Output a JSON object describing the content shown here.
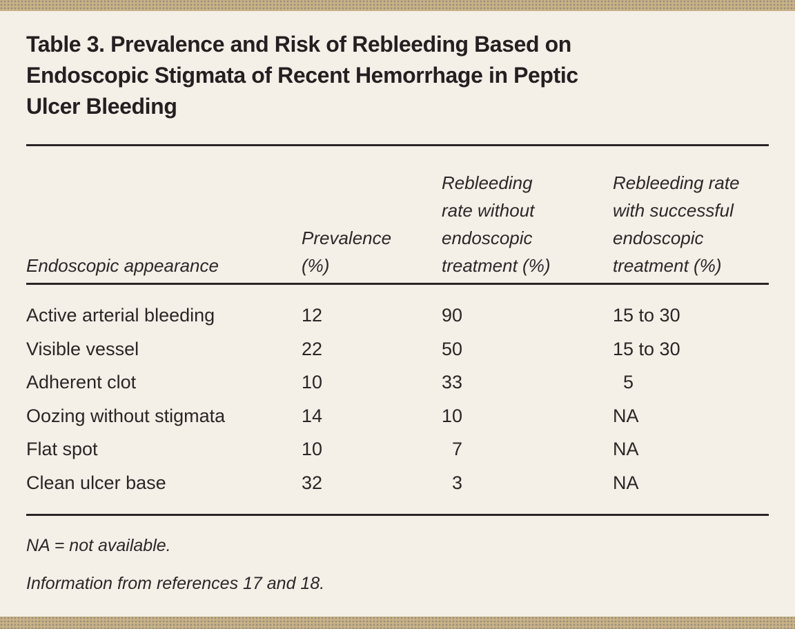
{
  "theme": {
    "background": "#f4efe7",
    "accent_bar": "#c8b285",
    "text": "#2b2526"
  },
  "table": {
    "title": "Table 3. Prevalence and Risk of Rebleeding Based on\nEndoscopic Stigmata of Recent Hemorrhage in Peptic\nUlcer Bleeding",
    "columns": [
      "Endoscopic appearance",
      "Prevalence\n(%)",
      "Rebleeding\nrate without\nendoscopic\ntreatment (%)",
      "Rebleeding rate\nwith successful\nendoscopic\ntreatment (%)"
    ],
    "rows": [
      [
        "Active arterial bleeding",
        "12",
        "90",
        "15 to 30"
      ],
      [
        "Visible vessel",
        "22",
        "50",
        "15 to 30"
      ],
      [
        "Adherent clot",
        "10",
        "33",
        "5"
      ],
      [
        "Oozing without stigmata",
        "14",
        "10",
        "NA"
      ],
      [
        "Flat spot",
        "10",
        "7",
        "NA"
      ],
      [
        "Clean ulcer base",
        "32",
        "3",
        "NA"
      ]
    ],
    "footnotes": [
      "NA = not available.",
      "Information from references 17 and 18."
    ]
  },
  "chart_data": {
    "type": "table",
    "title": "Table 3. Prevalence and Risk of Rebleeding Based on Endoscopic Stigmata of Recent Hemorrhage in Peptic Ulcer Bleeding",
    "columns": [
      "Endoscopic appearance",
      "Prevalence (%)",
      "Rebleeding rate without endoscopic treatment (%)",
      "Rebleeding rate with successful endoscopic treatment (%)"
    ],
    "rows": [
      [
        "Active arterial bleeding",
        "12",
        "90",
        "15 to 30"
      ],
      [
        "Visible vessel",
        "22",
        "50",
        "15 to 30"
      ],
      [
        "Adherent clot",
        "10",
        "33",
        "5"
      ],
      [
        "Oozing without stigmata",
        "14",
        "10",
        "NA"
      ],
      [
        "Flat spot",
        "10",
        "7",
        "NA"
      ],
      [
        "Clean ulcer base",
        "32",
        "3",
        "NA"
      ]
    ]
  }
}
